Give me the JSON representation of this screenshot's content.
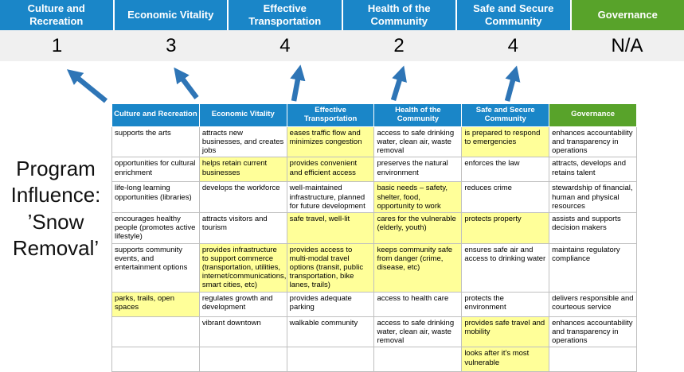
{
  "title": {
    "text": "Program\nInfluence:\n’Snow\nRemoval’"
  },
  "summary": {
    "columns": [
      {
        "label": "Culture and Recreation",
        "score": "1",
        "theme": "blue"
      },
      {
        "label": "Economic Vitality",
        "score": "3",
        "theme": "blue"
      },
      {
        "label": "Effective Transportation",
        "score": "4",
        "theme": "blue"
      },
      {
        "label": "Health of the Community",
        "score": "2",
        "theme": "blue"
      },
      {
        "label": "Safe and Secure Community",
        "score": "4",
        "theme": "blue"
      },
      {
        "label": "Governance",
        "score": "N/A",
        "theme": "green"
      }
    ]
  },
  "matrix": {
    "headers": [
      {
        "label": "Culture and Recreation",
        "theme": "blue"
      },
      {
        "label": "Economic Vitality",
        "theme": "blue"
      },
      {
        "label": "Effective Transportation",
        "theme": "blue"
      },
      {
        "label": "Health of the Community",
        "theme": "blue"
      },
      {
        "label": "Safe and Secure Community",
        "theme": "blue"
      },
      {
        "label": "Governance",
        "theme": "green"
      }
    ],
    "rows": [
      [
        {
          "text": "supports the arts",
          "highlight": false
        },
        {
          "text": "attracts new businesses, and creates jobs",
          "highlight": false
        },
        {
          "text": "eases traffic flow and minimizes congestion",
          "highlight": true
        },
        {
          "text": "access to safe drinking water, clean air, waste removal",
          "highlight": false
        },
        {
          "text": "is prepared to respond to emergencies",
          "highlight": true
        },
        {
          "text": "enhances accountability and transparency in operations",
          "highlight": false
        }
      ],
      [
        {
          "text": "opportunities for cultural enrichment",
          "highlight": false
        },
        {
          "text": "helps retain current businesses",
          "highlight": true
        },
        {
          "text": "provides convenient and efficient access",
          "highlight": true
        },
        {
          "text": "preserves the natural environment",
          "highlight": false
        },
        {
          "text": "enforces the law",
          "highlight": false
        },
        {
          "text": "attracts, develops and retains talent",
          "highlight": false
        }
      ],
      [
        {
          "text": "life-long learning opportunities (libraries)",
          "highlight": false
        },
        {
          "text": "develops the workforce",
          "highlight": false
        },
        {
          "text": "well-maintained infrastructure, planned for future development",
          "highlight": false
        },
        {
          "text": "basic needs – safety, shelter, food, opportunity to work",
          "highlight": true
        },
        {
          "text": "reduces crime",
          "highlight": false
        },
        {
          "text": "stewardship of financial, human and physical resources",
          "highlight": false
        }
      ],
      [
        {
          "text": "encourages healthy people (promotes active lifestyle)",
          "highlight": false
        },
        {
          "text": "attracts visitors and tourism",
          "highlight": false
        },
        {
          "text": "safe travel, well-lit",
          "highlight": true
        },
        {
          "text": "cares for the vulnerable (elderly, youth)",
          "highlight": true
        },
        {
          "text": "protects property",
          "highlight": true
        },
        {
          "text": "assists and supports decision makers",
          "highlight": false
        }
      ],
      [
        {
          "text": "supports community events, and entertainment options",
          "highlight": false
        },
        {
          "text": "provides infrastructure to support commerce (transportation, utilities, internet/communications, smart cities, etc)",
          "highlight": true
        },
        {
          "text": "provides access to multi-modal travel options (transit, public transportation, bike lanes, trails)",
          "highlight": true
        },
        {
          "text": "keeps community safe from danger (crime, disease, etc)",
          "highlight": true
        },
        {
          "text": "ensures safe air and access to drinking water",
          "highlight": false
        },
        {
          "text": "maintains regulatory compliance",
          "highlight": false
        }
      ],
      [
        {
          "text": "parks, trails, open spaces",
          "highlight": true
        },
        {
          "text": "regulates growth and development",
          "highlight": false
        },
        {
          "text": "provides adequate parking",
          "highlight": false
        },
        {
          "text": "access to health care",
          "highlight": false
        },
        {
          "text": "protects the environment",
          "highlight": false
        },
        {
          "text": "delivers responsible and courteous service",
          "highlight": false
        }
      ],
      [
        {
          "text": "",
          "highlight": false
        },
        {
          "text": "vibrant downtown",
          "highlight": false
        },
        {
          "text": "walkable community",
          "highlight": false
        },
        {
          "text": "access to safe drinking water, clean air, waste removal",
          "highlight": false
        },
        {
          "text": "provides safe travel and mobility",
          "highlight": true
        },
        {
          "text": "enhances accountability and transparency in operations",
          "highlight": false
        }
      ],
      [
        {
          "text": "",
          "highlight": false
        },
        {
          "text": "",
          "highlight": false
        },
        {
          "text": "",
          "highlight": false
        },
        {
          "text": "",
          "highlight": false
        },
        {
          "text": "looks after it's most vulnerable",
          "highlight": true
        },
        {
          "text": "",
          "highlight": false
        }
      ]
    ]
  },
  "colors": {
    "header_blue": "#1a86c8",
    "header_green": "#58a32a",
    "highlight": "#ffff99",
    "arrow": "#2e75b6",
    "score_bg": "#f0f0f0"
  }
}
